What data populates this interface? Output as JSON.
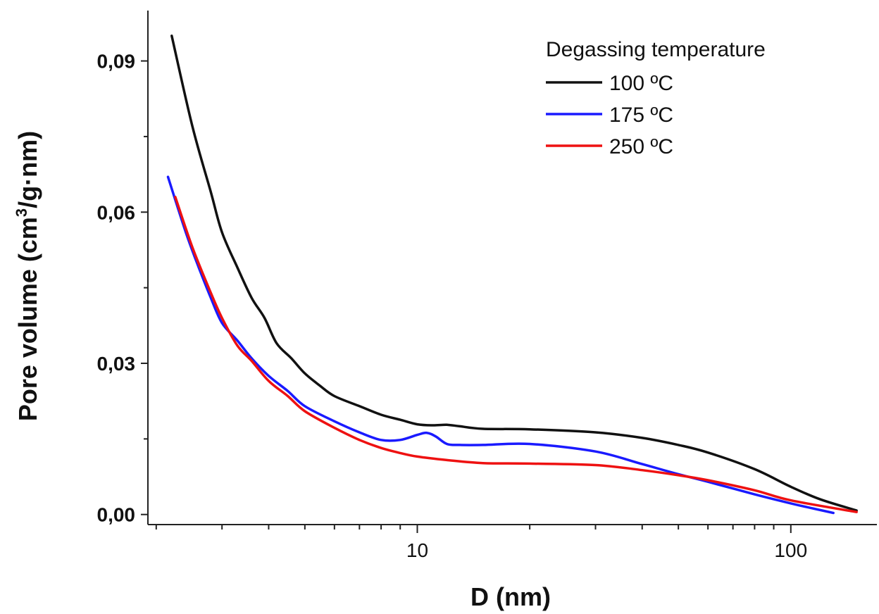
{
  "chart_data": {
    "type": "line",
    "title": "",
    "xlabel": "D (nm)",
    "ylabel_main": "Pore volume (cm",
    "ylabel_sup": "3",
    "ylabel_tail": "/g·nm)",
    "x_scale": "log",
    "xlim": [
      1.9,
      170
    ],
    "ylim": [
      -0.002,
      0.1
    ],
    "x_ticks": [
      10,
      100
    ],
    "x_tick_labels": [
      "10",
      "100"
    ],
    "y_ticks": [
      0.0,
      0.03,
      0.06,
      0.09
    ],
    "y_tick_labels": [
      "0,00",
      "0,03",
      "0,06",
      "0,09"
    ],
    "legend": {
      "title": "Degassing temperature",
      "position": "top-right"
    },
    "series": [
      {
        "name": "100 ºC",
        "color": "#111111",
        "x": [
          2.2,
          2.5,
          2.8,
          3.0,
          3.3,
          3.6,
          3.9,
          4.2,
          4.6,
          5.0,
          5.5,
          6.0,
          7.0,
          8.0,
          9.0,
          10.0,
          11.0,
          12.0,
          13.0,
          15.0,
          20.0,
          30.0,
          40.0,
          50.0,
          60.0,
          80.0,
          100.0,
          120.0,
          150.0
        ],
        "y": [
          0.095,
          0.077,
          0.064,
          0.056,
          0.049,
          0.043,
          0.039,
          0.034,
          0.031,
          0.028,
          0.0255,
          0.0235,
          0.0215,
          0.0198,
          0.0188,
          0.0179,
          0.0177,
          0.0178,
          0.0175,
          0.017,
          0.0169,
          0.0163,
          0.0152,
          0.0138,
          0.0123,
          0.009,
          0.0055,
          0.003,
          0.0008
        ]
      },
      {
        "name": "175 ºC",
        "color": "#1a1aff",
        "x": [
          2.15,
          2.4,
          2.6,
          2.8,
          3.0,
          3.3,
          3.6,
          4.0,
          4.5,
          5.0,
          6.0,
          7.0,
          8.0,
          9.0,
          10.0,
          10.6,
          11.2,
          12.0,
          13.0,
          15.0,
          20.0,
          30.0,
          40.0,
          50.0,
          60.0,
          80.0,
          100.0,
          130.0
        ],
        "y": [
          0.067,
          0.056,
          0.049,
          0.043,
          0.038,
          0.0345,
          0.031,
          0.0275,
          0.0245,
          0.0215,
          0.0185,
          0.0163,
          0.0148,
          0.0148,
          0.0158,
          0.0162,
          0.0155,
          0.014,
          0.0138,
          0.0138,
          0.014,
          0.0125,
          0.01,
          0.008,
          0.0065,
          0.004,
          0.0022,
          0.0003
        ]
      },
      {
        "name": "250 ºC",
        "color": "#ee1111",
        "x": [
          2.25,
          2.5,
          2.8,
          3.0,
          3.3,
          3.6,
          4.0,
          4.5,
          5.0,
          6.0,
          7.0,
          8.0,
          9.0,
          10.0,
          12.0,
          15.0,
          20.0,
          30.0,
          40.0,
          50.0,
          60.0,
          80.0,
          100.0,
          150.0
        ],
        "y": [
          0.063,
          0.053,
          0.044,
          0.039,
          0.0335,
          0.0305,
          0.0265,
          0.0235,
          0.0205,
          0.0172,
          0.0148,
          0.0132,
          0.0122,
          0.0115,
          0.0108,
          0.0102,
          0.0101,
          0.0098,
          0.0088,
          0.0078,
          0.0068,
          0.0048,
          0.0028,
          0.0005
        ]
      }
    ]
  }
}
